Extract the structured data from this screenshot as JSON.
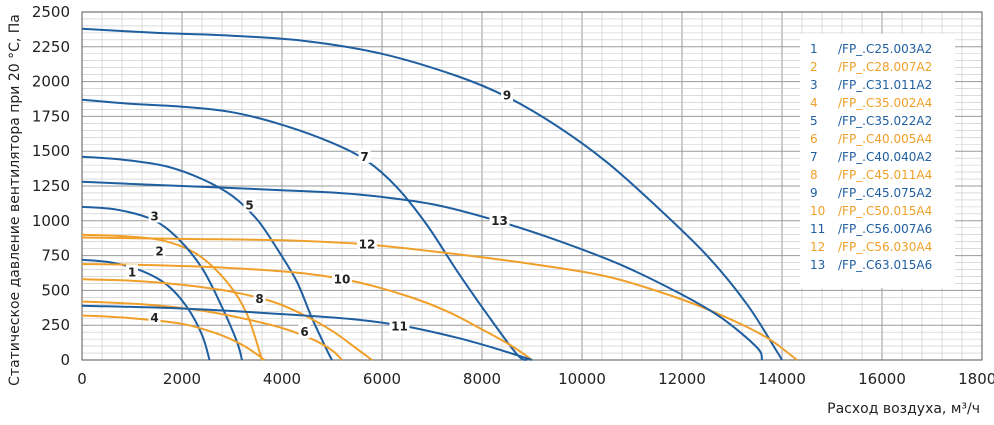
{
  "chart_data": {
    "type": "line",
    "title": "",
    "xlabel": "Расход воздуха, м³/ч",
    "ylabel": "Статическое давление вентилятора при 20 °С, Па",
    "xlim": [
      0,
      18000
    ],
    "ylim": [
      0,
      2500
    ],
    "x_ticks": [
      "0",
      "2000",
      "4000",
      "6000",
      "8000",
      "10000",
      "12000",
      "14000",
      "16000",
      "18000"
    ],
    "y_ticks": [
      "0",
      "250",
      "500",
      "750",
      "1000",
      "1250",
      "1500",
      "1750",
      "2000",
      "2250",
      "2500"
    ],
    "grid": true,
    "legend_position": "top-right",
    "colors": {
      "blue": "#1f5fa0",
      "orange": "#f0a02a",
      "grid": "#c8c8c8"
    },
    "series": [
      {
        "label": "1",
        "model": "/FP_.C25.003A2",
        "color": "#1f5fa0",
        "label_at": [
          1000,
          630
        ],
        "points": [
          [
            0,
            720
          ],
          [
            600,
            700
          ],
          [
            1200,
            640
          ],
          [
            1700,
            540
          ],
          [
            2100,
            380
          ],
          [
            2400,
            180
          ],
          [
            2550,
            0
          ]
        ]
      },
      {
        "label": "2",
        "model": "/FP_.C28.007A2",
        "color": "#f0a02a",
        "label_at": [
          1550,
          780
        ],
        "points": [
          [
            0,
            900
          ],
          [
            800,
            890
          ],
          [
            1600,
            860
          ],
          [
            2300,
            760
          ],
          [
            2900,
            560
          ],
          [
            3300,
            330
          ],
          [
            3600,
            0
          ]
        ]
      },
      {
        "label": "3",
        "model": "/FP_.C31.011A2",
        "color": "#1f5fa0",
        "label_at": [
          1450,
          1030
        ],
        "points": [
          [
            0,
            1100
          ],
          [
            700,
            1080
          ],
          [
            1400,
            1010
          ],
          [
            1900,
            880
          ],
          [
            2400,
            660
          ],
          [
            2800,
            380
          ],
          [
            3100,
            130
          ],
          [
            3200,
            0
          ]
        ]
      },
      {
        "label": "4",
        "model": "/FP_.C35.002A4",
        "color": "#f0a02a",
        "label_at": [
          1450,
          300
        ],
        "points": [
          [
            0,
            320
          ],
          [
            1000,
            300
          ],
          [
            2000,
            260
          ],
          [
            2700,
            190
          ],
          [
            3200,
            110
          ],
          [
            3500,
            40
          ],
          [
            3650,
            0
          ]
        ]
      },
      {
        "label": "5",
        "model": "/FP_.C35.022A2",
        "color": "#1f5fa0",
        "label_at": [
          3350,
          1110
        ],
        "points": [
          [
            0,
            1460
          ],
          [
            800,
            1440
          ],
          [
            1700,
            1390
          ],
          [
            2400,
            1300
          ],
          [
            3000,
            1180
          ],
          [
            3500,
            1010
          ],
          [
            3900,
            800
          ],
          [
            4300,
            560
          ],
          [
            4600,
            300
          ],
          [
            4900,
            70
          ],
          [
            5000,
            0
          ]
        ]
      },
      {
        "label": "6",
        "model": "/FP_.C40.005A4",
        "color": "#f0a02a",
        "label_at": [
          4450,
          200
        ],
        "points": [
          [
            0,
            420
          ],
          [
            1200,
            400
          ],
          [
            2300,
            360
          ],
          [
            3200,
            300
          ],
          [
            4000,
            230
          ],
          [
            4600,
            150
          ],
          [
            5000,
            70
          ],
          [
            5200,
            0
          ]
        ]
      },
      {
        "label": "7",
        "model": "/FP_.C40.040A2",
        "color": "#1f5fa0",
        "label_at": [
          5650,
          1460
        ],
        "points": [
          [
            0,
            1870
          ],
          [
            1000,
            1840
          ],
          [
            2000,
            1820
          ],
          [
            3000,
            1780
          ],
          [
            4000,
            1690
          ],
          [
            5000,
            1560
          ],
          [
            5700,
            1430
          ],
          [
            6300,
            1240
          ],
          [
            6900,
            970
          ],
          [
            7500,
            640
          ],
          [
            8100,
            330
          ],
          [
            8700,
            40
          ],
          [
            8900,
            0
          ]
        ]
      },
      {
        "label": "8",
        "model": "/FP_.C45.011A4",
        "color": "#f0a02a",
        "label_at": [
          3550,
          440
        ],
        "points": [
          [
            0,
            580
          ],
          [
            1000,
            570
          ],
          [
            2000,
            540
          ],
          [
            3000,
            490
          ],
          [
            3800,
            420
          ],
          [
            4400,
            330
          ],
          [
            5000,
            210
          ],
          [
            5500,
            80
          ],
          [
            5800,
            0
          ]
        ]
      },
      {
        "label": "9",
        "model": "/FP_.C45.075A2",
        "color": "#1f5fa0",
        "label_at": [
          8500,
          1900
        ],
        "points": [
          [
            0,
            2380
          ],
          [
            1500,
            2350
          ],
          [
            3000,
            2330
          ],
          [
            4500,
            2290
          ],
          [
            6000,
            2200
          ],
          [
            7500,
            2040
          ],
          [
            8500,
            1890
          ],
          [
            9500,
            1680
          ],
          [
            10500,
            1420
          ],
          [
            11500,
            1100
          ],
          [
            12500,
            750
          ],
          [
            13300,
            400
          ],
          [
            13900,
            60
          ],
          [
            14000,
            0
          ]
        ]
      },
      {
        "label": "10",
        "model": "/FP_.C50.015A4",
        "color": "#f0a02a",
        "label_at": [
          5200,
          580
        ],
        "points": [
          [
            0,
            690
          ],
          [
            1500,
            680
          ],
          [
            3000,
            660
          ],
          [
            4500,
            620
          ],
          [
            5500,
            560
          ],
          [
            6500,
            460
          ],
          [
            7300,
            350
          ],
          [
            8000,
            220
          ],
          [
            8600,
            100
          ],
          [
            9000,
            0
          ]
        ]
      },
      {
        "label": "11",
        "model": "/FP_.C56.007A6",
        "color": "#1f5fa0",
        "label_at": [
          6350,
          240
        ],
        "points": [
          [
            0,
            390
          ],
          [
            2000,
            370
          ],
          [
            4000,
            330
          ],
          [
            5500,
            290
          ],
          [
            6500,
            240
          ],
          [
            7500,
            160
          ],
          [
            8300,
            80
          ],
          [
            9000,
            0
          ]
        ]
      },
      {
        "label": "12",
        "model": "/FP_.C56.030A4",
        "color": "#f0a02a",
        "label_at": [
          5700,
          830
        ],
        "points": [
          [
            0,
            880
          ],
          [
            2000,
            870
          ],
          [
            4000,
            860
          ],
          [
            5700,
            830
          ],
          [
            7500,
            760
          ],
          [
            9000,
            690
          ],
          [
            10500,
            600
          ],
          [
            11800,
            460
          ],
          [
            12800,
            320
          ],
          [
            13700,
            160
          ],
          [
            14300,
            0
          ]
        ]
      },
      {
        "label": "13",
        "model": "/FP_.C63.015A6",
        "color": "#1f5fa0",
        "label_at": [
          8350,
          1000
        ],
        "points": [
          [
            0,
            1280
          ],
          [
            2000,
            1250
          ],
          [
            4000,
            1220
          ],
          [
            5500,
            1190
          ],
          [
            7000,
            1120
          ],
          [
            8300,
            1000
          ],
          [
            9500,
            860
          ],
          [
            10800,
            680
          ],
          [
            12000,
            470
          ],
          [
            12800,
            300
          ],
          [
            13500,
            90
          ],
          [
            13600,
            0
          ]
        ]
      }
    ]
  }
}
